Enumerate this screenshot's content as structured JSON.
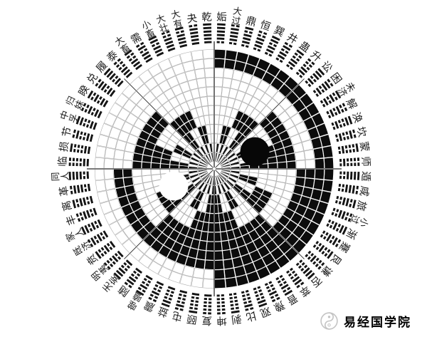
{
  "diagram": {
    "description_label": "",
    "hexagrams_clockwise_from_top": [
      {
        "name": "姤",
        "lines_bottom_to_top_1yang": "011111"
      },
      {
        "name": "大过",
        "lines_bottom_to_top_1yang": "011110"
      },
      {
        "name": "鼎",
        "lines_bottom_to_top_1yang": "011101"
      },
      {
        "name": "恒",
        "lines_bottom_to_top_1yang": "011100"
      },
      {
        "name": "巽",
        "lines_bottom_to_top_1yang": "011011"
      },
      {
        "name": "井",
        "lines_bottom_to_top_1yang": "011010"
      },
      {
        "name": "蛊",
        "lines_bottom_to_top_1yang": "011001"
      },
      {
        "name": "升",
        "lines_bottom_to_top_1yang": "011000"
      },
      {
        "name": "讼",
        "lines_bottom_to_top_1yang": "010111"
      },
      {
        "name": "困",
        "lines_bottom_to_top_1yang": "010110"
      },
      {
        "name": "未济",
        "lines_bottom_to_top_1yang": "010101"
      },
      {
        "name": "解",
        "lines_bottom_to_top_1yang": "010100"
      },
      {
        "name": "涣",
        "lines_bottom_to_top_1yang": "010011"
      },
      {
        "name": "坎",
        "lines_bottom_to_top_1yang": "010010"
      },
      {
        "name": "蒙",
        "lines_bottom_to_top_1yang": "010001"
      },
      {
        "name": "师",
        "lines_bottom_to_top_1yang": "010000"
      },
      {
        "name": "遁",
        "lines_bottom_to_top_1yang": "001111"
      },
      {
        "name": "咸",
        "lines_bottom_to_top_1yang": "001110"
      },
      {
        "name": "旅",
        "lines_bottom_to_top_1yang": "001101"
      },
      {
        "name": "小过",
        "lines_bottom_to_top_1yang": "001100"
      },
      {
        "name": "渐",
        "lines_bottom_to_top_1yang": "001011"
      },
      {
        "name": "蹇",
        "lines_bottom_to_top_1yang": "001010"
      },
      {
        "name": "艮",
        "lines_bottom_to_top_1yang": "001001"
      },
      {
        "name": "谦",
        "lines_bottom_to_top_1yang": "001000"
      },
      {
        "name": "否",
        "lines_bottom_to_top_1yang": "000111"
      },
      {
        "name": "萃",
        "lines_bottom_to_top_1yang": "000110"
      },
      {
        "name": "晋",
        "lines_bottom_to_top_1yang": "000101"
      },
      {
        "name": "豫",
        "lines_bottom_to_top_1yang": "000100"
      },
      {
        "name": "观",
        "lines_bottom_to_top_1yang": "000011"
      },
      {
        "name": "比",
        "lines_bottom_to_top_1yang": "000010"
      },
      {
        "name": "剥",
        "lines_bottom_to_top_1yang": "000001"
      },
      {
        "name": "坤",
        "lines_bottom_to_top_1yang": "000000"
      },
      {
        "name": "复",
        "lines_bottom_to_top_1yang": "100000"
      },
      {
        "name": "颐",
        "lines_bottom_to_top_1yang": "100001"
      },
      {
        "name": "屯",
        "lines_bottom_to_top_1yang": "100010"
      },
      {
        "name": "益",
        "lines_bottom_to_top_1yang": "100011"
      },
      {
        "name": "震",
        "lines_bottom_to_top_1yang": "100100"
      },
      {
        "name": "噬嗑",
        "lines_bottom_to_top_1yang": "100101"
      },
      {
        "name": "随",
        "lines_bottom_to_top_1yang": "100110"
      },
      {
        "name": "无妄",
        "lines_bottom_to_top_1yang": "100111"
      },
      {
        "name": "明夷",
        "lines_bottom_to_top_1yang": "101000"
      },
      {
        "name": "贲",
        "lines_bottom_to_top_1yang": "101001"
      },
      {
        "name": "既济",
        "lines_bottom_to_top_1yang": "101010"
      },
      {
        "name": "家人",
        "lines_bottom_to_top_1yang": "101011"
      },
      {
        "name": "丰",
        "lines_bottom_to_top_1yang": "101100"
      },
      {
        "name": "离",
        "lines_bottom_to_top_1yang": "101101"
      },
      {
        "name": "革",
        "lines_bottom_to_top_1yang": "101110"
      },
      {
        "name": "同人",
        "lines_bottom_to_top_1yang": "101111"
      },
      {
        "name": "临",
        "lines_bottom_to_top_1yang": "110000"
      },
      {
        "name": "损",
        "lines_bottom_to_top_1yang": "110001"
      },
      {
        "name": "节",
        "lines_bottom_to_top_1yang": "110010"
      },
      {
        "name": "中孚",
        "lines_bottom_to_top_1yang": "110011"
      },
      {
        "name": "归妹",
        "lines_bottom_to_top_1yang": "110100"
      },
      {
        "name": "睽",
        "lines_bottom_to_top_1yang": "110101"
      },
      {
        "name": "兑",
        "lines_bottom_to_top_1yang": "110110"
      },
      {
        "name": "履",
        "lines_bottom_to_top_1yang": "110111"
      },
      {
        "name": "泰",
        "lines_bottom_to_top_1yang": "111000"
      },
      {
        "name": "大畜",
        "lines_bottom_to_top_1yang": "111001"
      },
      {
        "name": "需",
        "lines_bottom_to_top_1yang": "111010"
      },
      {
        "name": "小畜",
        "lines_bottom_to_top_1yang": "111011"
      },
      {
        "name": "大壮",
        "lines_bottom_to_top_1yang": "111100"
      },
      {
        "name": "大有",
        "lines_bottom_to_top_1yang": "111101"
      },
      {
        "name": "夬",
        "lines_bottom_to_top_1yang": "111110"
      },
      {
        "name": "乾",
        "lines_bottom_to_top_1yang": "111111"
      }
    ],
    "taiji_eyes": {
      "upper_right_dot": "black",
      "lower_left_dot": "white"
    },
    "spoke_count": 8
  },
  "watermark": {
    "text": "易经国学院",
    "logo": "taiji-swirl-logo"
  },
  "colors": {
    "background": "#ffffff",
    "ink": "#151515",
    "cell_black": "#0c0c0c",
    "grid_gray": "#a9a9a9",
    "spoke_dark": "#2b2b2b",
    "watermark_gray": "#c4c4c4"
  }
}
